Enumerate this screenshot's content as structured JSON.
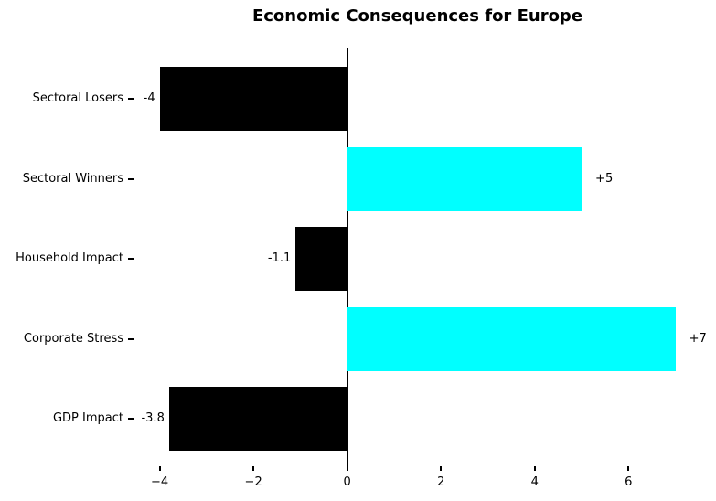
{
  "title": "Economic Consequences for Europe",
  "chart_data": {
    "type": "bar",
    "orientation": "horizontal",
    "title": "Economic Consequences for Europe",
    "categories": [
      "Sectoral Losers",
      "Sectoral Winners",
      "Household Impact",
      "Corporate Stress",
      "GDP Impact"
    ],
    "values": [
      -4,
      5,
      -1.1,
      7,
      -3.8
    ],
    "value_labels": [
      "-4",
      "+5",
      "-1.1",
      "+7",
      "-3.8"
    ],
    "bar_colors": [
      "#000000",
      "#00ffff",
      "#000000",
      "#00ffff",
      "#000000"
    ],
    "negative_color": "#000000",
    "positive_color": "#00ffff",
    "xticks": [
      -4,
      -2,
      0,
      2,
      4,
      6
    ],
    "xtick_labels": [
      "−4",
      "−2",
      "0",
      "2",
      "4",
      "6"
    ],
    "xlim": [
      -4.55,
      7.55
    ],
    "grid": false,
    "legend": null,
    "zero_line": true,
    "background_color": "#ffffff",
    "text_color": "#000000"
  }
}
